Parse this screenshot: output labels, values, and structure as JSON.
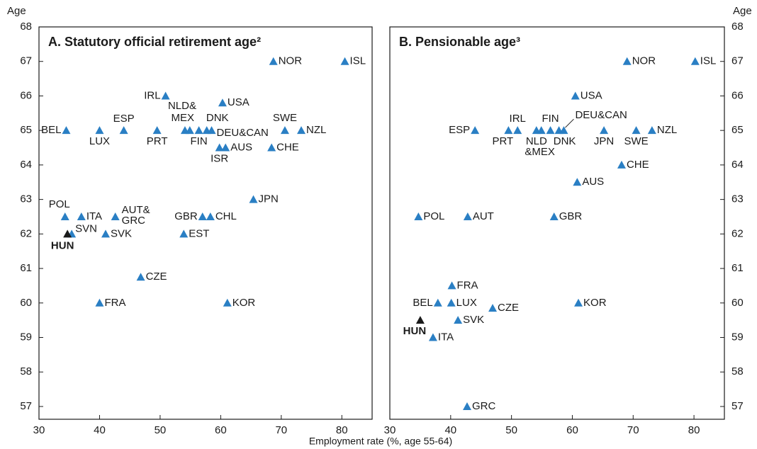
{
  "chart_data": [
    {
      "type": "scatter",
      "title": "A. Statutory official retirement age²",
      "ylabel": "Age",
      "xlabel": "Employment rate (%, age 55-64)",
      "yaxis_side": "left",
      "xlim": [
        30,
        85
      ],
      "ylim": [
        56.63,
        68
      ],
      "xticks": [
        30,
        40,
        50,
        60,
        70,
        80
      ],
      "yticks": [
        57,
        58,
        59,
        60,
        61,
        62,
        63,
        64,
        65,
        66,
        67,
        68
      ],
      "color": "#2a7fc4",
      "points": [
        {
          "label": "NOR",
          "x": 68.7,
          "y": 67
        },
        {
          "label": "ISL",
          "x": 80.5,
          "y": 67
        },
        {
          "label": "IRL",
          "x": 50.9,
          "y": 66
        },
        {
          "label": "USA",
          "x": 60.3,
          "y": 65.8
        },
        {
          "label": "BEL",
          "x": 34.5,
          "y": 65
        },
        {
          "label": "LUX",
          "x": 40.0,
          "y": 65
        },
        {
          "label": "ESP",
          "x": 44.0,
          "y": 65
        },
        {
          "label": "PRT",
          "x": 49.5,
          "y": 65
        },
        {
          "label": "NLD&",
          "x": 54.1,
          "y": 65
        },
        {
          "label": "MEX",
          "x": 54.9,
          "y": 65
        },
        {
          "label": "FIN",
          "x": 56.4,
          "y": 65
        },
        {
          "label": "DNK",
          "x": 57.7,
          "y": 65
        },
        {
          "label": "DEU&CAN",
          "x": 58.5,
          "y": 65
        },
        {
          "label": "SWE",
          "x": 70.6,
          "y": 65
        },
        {
          "label": "NZL",
          "x": 73.3,
          "y": 65
        },
        {
          "label": "ISR",
          "x": 59.8,
          "y": 64.5
        },
        {
          "label": "AUS",
          "x": 60.8,
          "y": 64.5
        },
        {
          "label": "CHE",
          "x": 68.4,
          "y": 64.5
        },
        {
          "label": "JPN",
          "x": 65.4,
          "y": 63
        },
        {
          "label": "POL",
          "x": 34.3,
          "y": 62.5
        },
        {
          "label": "ITA",
          "x": 37.0,
          "y": 62.5
        },
        {
          "label": [
            "AUT&",
            "GRC"
          ],
          "x": 42.6,
          "y": 62.5
        },
        {
          "label": "GBR",
          "x": 57.0,
          "y": 62.5
        },
        {
          "label": "CHL",
          "x": 58.3,
          "y": 62.5
        },
        {
          "label": "SVN",
          "x": 35.4,
          "y": 62
        },
        {
          "label": "HUN",
          "x": 34.7,
          "y": 62,
          "color": "#1a1a1a",
          "bold": true
        },
        {
          "label": "SVK",
          "x": 41.0,
          "y": 62
        },
        {
          "label": "EST",
          "x": 53.9,
          "y": 62
        },
        {
          "label": "CZE",
          "x": 46.8,
          "y": 60.75
        },
        {
          "label": "FRA",
          "x": 40.0,
          "y": 60
        },
        {
          "label": "KOR",
          "x": 61.1,
          "y": 60
        }
      ]
    },
    {
      "type": "scatter",
      "title": "B. Pensionable age³",
      "ylabel": "Age",
      "yaxis_side": "right",
      "xlim": [
        30,
        85
      ],
      "ylim": [
        56.63,
        68
      ],
      "xticks": [
        30,
        40,
        50,
        60,
        70,
        80
      ],
      "yticks": [
        57,
        58,
        59,
        60,
        61,
        62,
        63,
        64,
        65,
        66,
        67,
        68
      ],
      "color": "#2a7fc4",
      "points": [
        {
          "label": "NOR",
          "x": 69.0,
          "y": 67
        },
        {
          "label": "ISL",
          "x": 80.2,
          "y": 67
        },
        {
          "label": "USA",
          "x": 60.5,
          "y": 66
        },
        {
          "label": "ESP",
          "x": 44.0,
          "y": 65
        },
        {
          "label": "PRT",
          "x": 49.5,
          "y": 65
        },
        {
          "label": "IRL",
          "x": 51.0,
          "y": 65
        },
        {
          "label": "NLD",
          "x": 54.1,
          "y": 65
        },
        {
          "label": "&MEX",
          "x": 54.9,
          "y": 65
        },
        {
          "label": "FIN",
          "x": 56.4,
          "y": 65
        },
        {
          "label": "DNK",
          "x": 57.8,
          "y": 65
        },
        {
          "label": "DEU&CAN",
          "x": 58.6,
          "y": 65
        },
        {
          "label": "JPN",
          "x": 65.2,
          "y": 65
        },
        {
          "label": "SWE",
          "x": 70.5,
          "y": 65
        },
        {
          "label": "NZL",
          "x": 73.1,
          "y": 65
        },
        {
          "label": "CHE",
          "x": 68.1,
          "y": 64
        },
        {
          "label": "AUS",
          "x": 60.8,
          "y": 63.5
        },
        {
          "label": "POL",
          "x": 34.7,
          "y": 62.5
        },
        {
          "label": "AUT",
          "x": 42.8,
          "y": 62.5
        },
        {
          "label": "GBR",
          "x": 57.0,
          "y": 62.5
        },
        {
          "label": "FRA",
          "x": 40.2,
          "y": 60.5
        },
        {
          "label": "BEL",
          "x": 37.9,
          "y": 60
        },
        {
          "label": "LUX",
          "x": 40.1,
          "y": 60
        },
        {
          "label": "CZE",
          "x": 46.9,
          "y": 59.85
        },
        {
          "label": "KOR",
          "x": 61.0,
          "y": 60
        },
        {
          "label": "SVK",
          "x": 41.2,
          "y": 59.5
        },
        {
          "label": "HUN",
          "x": 35.0,
          "y": 59.5,
          "color": "#1a1a1a",
          "bold": true
        },
        {
          "label": "ITA",
          "x": 37.1,
          "y": 59
        },
        {
          "label": "GRC",
          "x": 42.7,
          "y": 57
        }
      ]
    }
  ]
}
